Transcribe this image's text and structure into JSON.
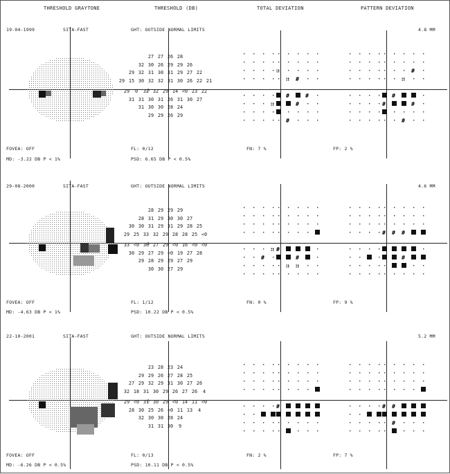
{
  "headers": {
    "graytone": "THRESHOLD GRAYTONE",
    "threshold": "THRESHOLD (DB)",
    "total": "TOTAL DEVIATION",
    "pattern": "PATTERN DEVIATION"
  },
  "panels": [
    {
      "date": "19-04-1999",
      "strategy": "SITA-FAST",
      "ght": "GHT: OUTSIDE NORMAL LIMITS",
      "pupil": "4.8 MM",
      "fovea": "FOVEA: OFF",
      "fl": "FL: 0/12",
      "fn": "FN:  7 %",
      "fp": "FP:  2 %",
      "md": "MD:  -3.22 DB  P < 1%",
      "psd": "PSD:  6.65 DB  P < 0.5%",
      "rows": [
        [
          "",
          "",
          "27",
          "27",
          "26",
          "28",
          "",
          ""
        ],
        [
          "",
          "32",
          "30",
          "26",
          "29",
          "29",
          "26",
          ""
        ],
        [
          "29",
          "32",
          "31",
          "30",
          "31",
          "29",
          "27",
          "22"
        ],
        [
          "29",
          "15",
          "30",
          "32",
          "32",
          "31",
          "30",
          "26",
          "22",
          "21"
        ],
        [
          "29",
          "0",
          "32",
          "32",
          "29",
          "14",
          "<0",
          "23",
          "22"
        ],
        [
          "31",
          "31",
          "30",
          "31",
          "26",
          "31",
          "30",
          "27"
        ],
        [
          "",
          "31",
          "30",
          "30",
          "28",
          "24",
          "",
          ""
        ],
        [
          "",
          "",
          "29",
          "29",
          "26",
          "29",
          "",
          ""
        ]
      ]
    },
    {
      "date": "29-08-2000",
      "strategy": "SITA-FAST",
      "ght": "GHT: OUTSIDE NORMAL LIMITS",
      "pupil": "4.6 MM",
      "fovea": "FOVEA: OFF",
      "fl": "FL: 1/12",
      "fn": "FN:  0 %",
      "fp": "FP:  9 %",
      "md": "MD:  -4.63 DB  P < 1%",
      "psd": "PSD:  10.22 DB  P < 0.5%",
      "rows": [
        [
          "",
          "",
          "28",
          "29",
          "29",
          "29",
          "",
          ""
        ],
        [
          "",
          "28",
          "31",
          "29",
          "30",
          "30",
          "27",
          ""
        ],
        [
          "30",
          "30",
          "31",
          "29",
          "31",
          "29",
          "28",
          "25"
        ],
        [
          "29",
          "25",
          "33",
          "32",
          "29",
          "28",
          "28",
          "25",
          "<0"
        ],
        [
          "33",
          "<0",
          "30",
          "27",
          "29",
          "<0",
          "16",
          "<0",
          "<0"
        ],
        [
          "30",
          "29",
          "27",
          "29",
          "<0",
          "19",
          "27",
          "28"
        ],
        [
          "",
          "29",
          "28",
          "29",
          "29",
          "27",
          "29",
          ""
        ],
        [
          "",
          "",
          "30",
          "30",
          "27",
          "29",
          "",
          ""
        ]
      ]
    },
    {
      "date": "22-10-2001",
      "strategy": "SITA-FAST",
      "ght": "GHT: OUTSIDE NORMAL LIMITS",
      "pupil": "5.2 MM",
      "fovea": "FOVEA: OFF",
      "fl": "FL: 0/13",
      "fn": "FN:  2 %",
      "fp": "FP:  7 %",
      "md": "MD:  -6.26 DB  P < 0.5%",
      "psd": "PSD:  10.11 DB  P < 0.5%",
      "rows": [
        [
          "",
          "",
          "23",
          "28",
          "23",
          "24",
          "",
          ""
        ],
        [
          "",
          "29",
          "29",
          "26",
          "27",
          "28",
          "25",
          ""
        ],
        [
          "27",
          "29",
          "32",
          "29",
          "31",
          "30",
          "27",
          "26"
        ],
        [
          "32",
          "18",
          "31",
          "30",
          "29",
          "26",
          "27",
          "26",
          "4"
        ],
        [
          "29",
          "<0",
          "31",
          "30",
          "29",
          "<0",
          "14",
          "11",
          "<0"
        ],
        [
          "28",
          "30",
          "25",
          "26",
          "<0",
          "11",
          "13",
          "4"
        ],
        [
          "",
          "32",
          "30",
          "30",
          "28",
          "24",
          "",
          ""
        ],
        [
          "",
          "",
          "31",
          "31",
          "30",
          "9",
          "",
          ""
        ]
      ]
    }
  ]
}
